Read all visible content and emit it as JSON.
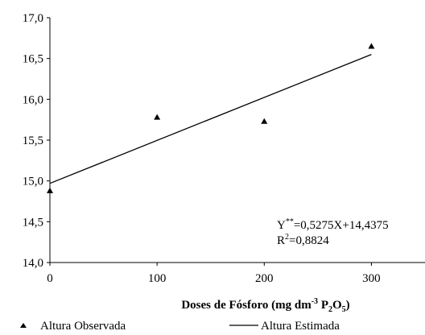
{
  "chart_data": {
    "type": "scatter",
    "xlabel_parts": {
      "prefix": "Doses de Fósforo (mg dm",
      "sup": "-3",
      "mid": " P",
      "sub1": "2",
      "o": "O",
      "sub2": "5",
      "suffix": ")"
    },
    "x_ticks": [
      "0",
      "100",
      "200",
      "300"
    ],
    "y_ticks": [
      "14,0",
      "14,5",
      "15,0",
      "15,5",
      "16,0",
      "16,5",
      "17,0"
    ],
    "xlim": [
      0,
      350
    ],
    "ylim": [
      14.0,
      17.0
    ],
    "series": [
      {
        "name": "Altura Observada",
        "kind": "points",
        "marker": "triangle",
        "x": [
          0,
          100,
          200,
          300
        ],
        "y": [
          14.88,
          15.78,
          15.73,
          16.65
        ]
      },
      {
        "name": "Altura Estimada",
        "kind": "line",
        "x": [
          0,
          300
        ],
        "y": [
          14.97,
          16.55
        ]
      }
    ],
    "equation": {
      "y_label": "Y",
      "y_sup": "**",
      "y_rest": "=0,5275X+14,4375",
      "r_label": "R",
      "r_sup": "2",
      "r_rest": "=0,8824"
    },
    "legend_position": "bottom",
    "grid": false
  }
}
